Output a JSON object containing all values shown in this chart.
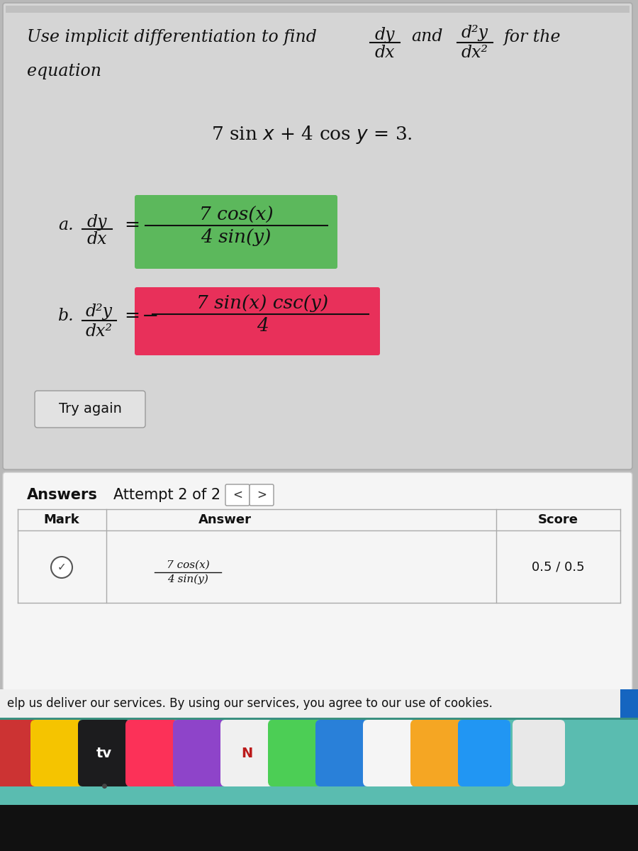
{
  "upper_bg": "#d0d0d0",
  "lower_bg": "#f0f0f0",
  "fig_bg": "#b8b8b8",
  "title_line1": "Use implicit differentiation to find",
  "title_line2_and": "and",
  "title_line2_forthe": "for the",
  "equation_line2": "equation",
  "equation": "7 sin x + 4 cos y = 3.",
  "part_a_label": "a.",
  "part_a_num": "7 cos(x)",
  "part_a_den": "4 sin(y)",
  "green_bg": "#5cb85c",
  "part_b_label": "b.",
  "part_b_neg": "−",
  "part_b_num": "7 sin(x) csc(y)",
  "part_b_den": "4",
  "pink_bg": "#e8305a",
  "try_again": "Try again",
  "answers_label": "Answers",
  "attempt_label": "Attempt 2 of 2",
  "mark_header": "Mark",
  "answer_header": "Answer",
  "score_header": "Score",
  "answer_num": "7 cos(x)",
  "answer_den": "4 sin(y)",
  "score_val": "0.5 / 0.5",
  "cookie_text": "elp us deliver our services. By using our services, you agree to our use of cookies.",
  "dock_bg": "#5abcb0",
  "dock_sep": "#3a9e93"
}
